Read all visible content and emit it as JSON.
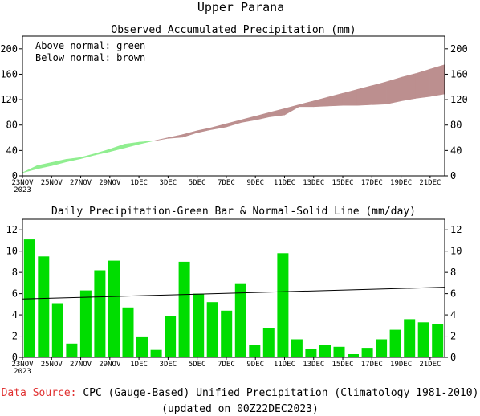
{
  "page_title": "Upper_Parana",
  "colors": {
    "above": "#90ee90",
    "below": "#bc8f8f",
    "bar": "#00dd00",
    "source_label": "#e03030"
  },
  "footer": {
    "source_label": "Data Source:",
    "source_text": "CPC (Gauge-Based) Unified Precipitation (Climatology 1981-2010)",
    "updated": "(updated on 00Z22DEC2023)"
  },
  "chart_data": [
    {
      "type": "area",
      "title": "Observed Accumulated Precipitation (mm)",
      "legend": [
        "Above normal: green",
        "Below normal: brown"
      ],
      "legend_placement": "top-left",
      "ylim": [
        0,
        220
      ],
      "yticks": [
        0,
        40,
        80,
        120,
        160,
        200
      ],
      "xlim": [
        0,
        29
      ],
      "xticks": [
        {
          "x": 0,
          "label": "23NOV",
          "sub": "2023"
        },
        {
          "x": 2,
          "label": "25NOV"
        },
        {
          "x": 4,
          "label": "27NOV"
        },
        {
          "x": 6,
          "label": "29NOV"
        },
        {
          "x": 8,
          "label": "1DEC"
        },
        {
          "x": 10,
          "label": "3DEC"
        },
        {
          "x": 12,
          "label": "5DEC"
        },
        {
          "x": 14,
          "label": "7DEC"
        },
        {
          "x": 16,
          "label": "9DEC"
        },
        {
          "x": 18,
          "label": "11DEC"
        },
        {
          "x": 20,
          "label": "13DEC"
        },
        {
          "x": 22,
          "label": "15DEC"
        },
        {
          "x": 24,
          "label": "17DEC"
        },
        {
          "x": 26,
          "label": "19DEC"
        },
        {
          "x": 28,
          "label": "21DEC"
        }
      ],
      "series": [
        {
          "values": [
            5,
            16,
            21,
            26,
            29,
            35,
            42,
            50,
            53,
            55,
            59,
            61,
            68,
            73,
            77,
            84,
            88,
            93,
            96,
            109,
            109,
            110,
            111,
            111,
            112,
            113,
            118,
            122,
            125,
            129
          ]
        },
        {
          "values": [
            5,
            11,
            16,
            22,
            27,
            33,
            38,
            44,
            50,
            55,
            60,
            65,
            71,
            76,
            82,
            88,
            94,
            100,
            106,
            112,
            118,
            124,
            130,
            136,
            142,
            148,
            155,
            161,
            168,
            175
          ]
        }
      ]
    },
    {
      "type": "bar",
      "title": "Daily Precipitation-Green Bar & Normal-Solid Line (mm/day)",
      "ylim": [
        0,
        13
      ],
      "yticks": [
        0,
        2,
        4,
        6,
        8,
        10,
        12
      ],
      "xlim": [
        0,
        29
      ],
      "xticks": [
        {
          "x": 0,
          "label": "23NOV",
          "sub": "2023"
        },
        {
          "x": 2,
          "label": "25NOV"
        },
        {
          "x": 4,
          "label": "27NOV"
        },
        {
          "x": 6,
          "label": "29NOV"
        },
        {
          "x": 8,
          "label": "1DEC"
        },
        {
          "x": 10,
          "label": "3DEC"
        },
        {
          "x": 12,
          "label": "5DEC"
        },
        {
          "x": 14,
          "label": "7DEC"
        },
        {
          "x": 16,
          "label": "9DEC"
        },
        {
          "x": 18,
          "label": "11DEC"
        },
        {
          "x": 20,
          "label": "13DEC"
        },
        {
          "x": 22,
          "label": "15DEC"
        },
        {
          "x": 24,
          "label": "17DEC"
        },
        {
          "x": 26,
          "label": "19DEC"
        },
        {
          "x": 28,
          "label": "21DEC"
        }
      ],
      "values": [
        11.1,
        9.5,
        5.1,
        1.3,
        6.3,
        8.2,
        9.1,
        4.7,
        1.9,
        0.7,
        3.9,
        9.0,
        6.0,
        5.2,
        4.4,
        6.9,
        1.2,
        2.8,
        9.8,
        1.7,
        0.8,
        1.2,
        1.0,
        0.3,
        0.9,
        1.7,
        2.6,
        3.6,
        3.3,
        3.1
      ],
      "normal_line": [
        5.5,
        6.6
      ]
    }
  ]
}
